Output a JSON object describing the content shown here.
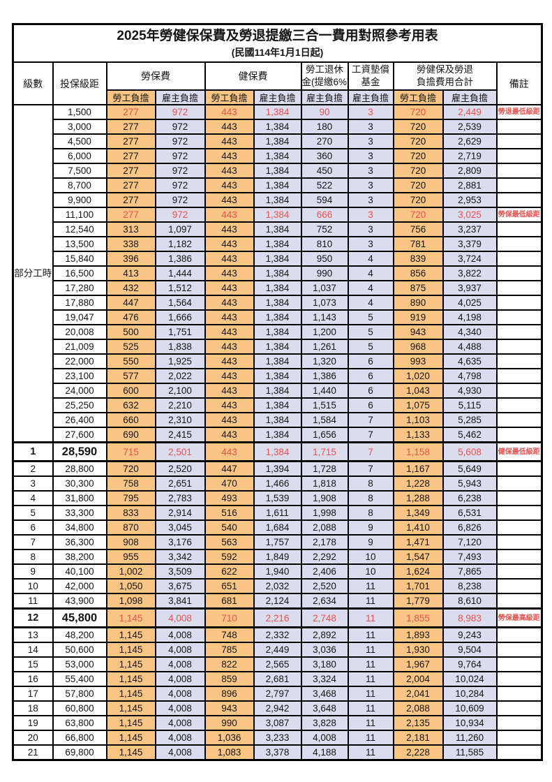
{
  "title": "2025年勞健保保費及勞退提繳三合一費用對照參考用表",
  "subtitle": "(民國114年1月1日起)",
  "colors": {
    "employee_bg": "#F8C585",
    "employer_bg": "#DCDCEF",
    "highlight_red": "#E8524E",
    "border": "#000000"
  },
  "header": {
    "level": "級數",
    "bracket": "投保級距",
    "labor_group": "勞保費",
    "health_group": "健保費",
    "pension_line1": "勞工退休",
    "pension_line2": "金(提繳6%)",
    "arrears_line1": "工資墊償",
    "arrears_line2": "基金",
    "total_line1": "勞健保及勞退",
    "total_line2": "負擔費用合計",
    "employee": "勞工負擔",
    "employer": "雇主負擔",
    "remark": "備註"
  },
  "part_time_label": "部分工時",
  "rows": [
    {
      "level": "",
      "bracket": "1,500",
      "labor_emp": "277",
      "labor_er": "972",
      "health_emp": "443",
      "health_er": "1,384",
      "pension_er": "90",
      "arrears_er": "3",
      "total_emp": "720",
      "total_er": "2,449",
      "remark": "勞退最低級距",
      "red": true,
      "em": false
    },
    {
      "level": "",
      "bracket": "3,000",
      "labor_emp": "277",
      "labor_er": "972",
      "health_emp": "443",
      "health_er": "1,384",
      "pension_er": "180",
      "arrears_er": "3",
      "total_emp": "720",
      "total_er": "2,539",
      "remark": "",
      "red": false,
      "em": false
    },
    {
      "level": "",
      "bracket": "4,500",
      "labor_emp": "277",
      "labor_er": "972",
      "health_emp": "443",
      "health_er": "1,384",
      "pension_er": "270",
      "arrears_er": "3",
      "total_emp": "720",
      "total_er": "2,629",
      "remark": "",
      "red": false,
      "em": false
    },
    {
      "level": "",
      "bracket": "6,000",
      "labor_emp": "277",
      "labor_er": "972",
      "health_emp": "443",
      "health_er": "1,384",
      "pension_er": "360",
      "arrears_er": "3",
      "total_emp": "720",
      "total_er": "2,719",
      "remark": "",
      "red": false,
      "em": false
    },
    {
      "level": "",
      "bracket": "7,500",
      "labor_emp": "277",
      "labor_er": "972",
      "health_emp": "443",
      "health_er": "1,384",
      "pension_er": "450",
      "arrears_er": "3",
      "total_emp": "720",
      "total_er": "2,809",
      "remark": "",
      "red": false,
      "em": false
    },
    {
      "level": "",
      "bracket": "8,700",
      "labor_emp": "277",
      "labor_er": "972",
      "health_emp": "443",
      "health_er": "1,384",
      "pension_er": "522",
      "arrears_er": "3",
      "total_emp": "720",
      "total_er": "2,881",
      "remark": "",
      "red": false,
      "em": false
    },
    {
      "level": "",
      "bracket": "9,900",
      "labor_emp": "277",
      "labor_er": "972",
      "health_emp": "443",
      "health_er": "1,384",
      "pension_er": "594",
      "arrears_er": "3",
      "total_emp": "720",
      "total_er": "2,953",
      "remark": "",
      "red": false,
      "em": false
    },
    {
      "level": "",
      "bracket": "11,100",
      "labor_emp": "277",
      "labor_er": "972",
      "health_emp": "443",
      "health_er": "1,384",
      "pension_er": "666",
      "arrears_er": "3",
      "total_emp": "720",
      "total_er": "3,025",
      "remark": "勞保最低級距",
      "red": true,
      "em": false
    },
    {
      "level": "",
      "bracket": "12,540",
      "labor_emp": "313",
      "labor_er": "1,097",
      "health_emp": "443",
      "health_er": "1,384",
      "pension_er": "752",
      "arrears_er": "3",
      "total_emp": "756",
      "total_er": "3,237",
      "remark": "",
      "red": false,
      "em": false
    },
    {
      "level": "",
      "bracket": "13,500",
      "labor_emp": "338",
      "labor_er": "1,182",
      "health_emp": "443",
      "health_er": "1,384",
      "pension_er": "810",
      "arrears_er": "3",
      "total_emp": "781",
      "total_er": "3,379",
      "remark": "",
      "red": false,
      "em": false
    },
    {
      "level": "",
      "bracket": "15,840",
      "labor_emp": "396",
      "labor_er": "1,386",
      "health_emp": "443",
      "health_er": "1,384",
      "pension_er": "950",
      "arrears_er": "4",
      "total_emp": "839",
      "total_er": "3,724",
      "remark": "",
      "red": false,
      "em": false
    },
    {
      "level": "",
      "bracket": "16,500",
      "labor_emp": "413",
      "labor_er": "1,444",
      "health_emp": "443",
      "health_er": "1,384",
      "pension_er": "990",
      "arrears_er": "4",
      "total_emp": "856",
      "total_er": "3,822",
      "remark": "",
      "red": false,
      "em": false
    },
    {
      "level": "",
      "bracket": "17,280",
      "labor_emp": "432",
      "labor_er": "1,512",
      "health_emp": "443",
      "health_er": "1,384",
      "pension_er": "1,037",
      "arrears_er": "4",
      "total_emp": "875",
      "total_er": "3,937",
      "remark": "",
      "red": false,
      "em": false
    },
    {
      "level": "",
      "bracket": "17,880",
      "labor_emp": "447",
      "labor_er": "1,564",
      "health_emp": "443",
      "health_er": "1,384",
      "pension_er": "1,073",
      "arrears_er": "4",
      "total_emp": "890",
      "total_er": "4,025",
      "remark": "",
      "red": false,
      "em": false
    },
    {
      "level": "",
      "bracket": "19,047",
      "labor_emp": "476",
      "labor_er": "1,666",
      "health_emp": "443",
      "health_er": "1,384",
      "pension_er": "1,143",
      "arrears_er": "5",
      "total_emp": "919",
      "total_er": "4,198",
      "remark": "",
      "red": false,
      "em": false
    },
    {
      "level": "",
      "bracket": "20,008",
      "labor_emp": "500",
      "labor_er": "1,751",
      "health_emp": "443",
      "health_er": "1,384",
      "pension_er": "1,200",
      "arrears_er": "5",
      "total_emp": "943",
      "total_er": "4,340",
      "remark": "",
      "red": false,
      "em": false
    },
    {
      "level": "",
      "bracket": "21,009",
      "labor_emp": "525",
      "labor_er": "1,838",
      "health_emp": "443",
      "health_er": "1,384",
      "pension_er": "1,261",
      "arrears_er": "5",
      "total_emp": "968",
      "total_er": "4,488",
      "remark": "",
      "red": false,
      "em": false
    },
    {
      "level": "",
      "bracket": "22,000",
      "labor_emp": "550",
      "labor_er": "1,925",
      "health_emp": "443",
      "health_er": "1,384",
      "pension_er": "1,320",
      "arrears_er": "6",
      "total_emp": "993",
      "total_er": "4,635",
      "remark": "",
      "red": false,
      "em": false
    },
    {
      "level": "",
      "bracket": "23,100",
      "labor_emp": "577",
      "labor_er": "2,022",
      "health_emp": "443",
      "health_er": "1,384",
      "pension_er": "1,386",
      "arrears_er": "6",
      "total_emp": "1,020",
      "total_er": "4,798",
      "remark": "",
      "red": false,
      "em": false
    },
    {
      "level": "",
      "bracket": "24,000",
      "labor_emp": "600",
      "labor_er": "2,100",
      "health_emp": "443",
      "health_er": "1,384",
      "pension_er": "1,440",
      "arrears_er": "6",
      "total_emp": "1,043",
      "total_er": "4,930",
      "remark": "",
      "red": false,
      "em": false
    },
    {
      "level": "",
      "bracket": "25,250",
      "labor_emp": "632",
      "labor_er": "2,210",
      "health_emp": "443",
      "health_er": "1,384",
      "pension_er": "1,515",
      "arrears_er": "6",
      "total_emp": "1,075",
      "total_er": "5,115",
      "remark": "",
      "red": false,
      "em": false
    },
    {
      "level": "",
      "bracket": "26,400",
      "labor_emp": "660",
      "labor_er": "2,310",
      "health_emp": "443",
      "health_er": "1,384",
      "pension_er": "1,584",
      "arrears_er": "7",
      "total_emp": "1,103",
      "total_er": "5,285",
      "remark": "",
      "red": false,
      "em": false
    },
    {
      "level": "",
      "bracket": "27,600",
      "labor_emp": "690",
      "labor_er": "2,415",
      "health_emp": "443",
      "health_er": "1,384",
      "pension_er": "1,656",
      "arrears_er": "7",
      "total_emp": "1,133",
      "total_er": "5,462",
      "remark": "",
      "red": false,
      "em": false
    },
    {
      "level": "1",
      "bracket": "28,590",
      "labor_emp": "715",
      "labor_er": "2,501",
      "health_emp": "443",
      "health_er": "1,384",
      "pension_er": "1,715",
      "arrears_er": "7",
      "total_emp": "1,158",
      "total_er": "5,608",
      "remark": "健保最低級距",
      "red": true,
      "em": true
    },
    {
      "level": "2",
      "bracket": "28,800",
      "labor_emp": "720",
      "labor_er": "2,520",
      "health_emp": "447",
      "health_er": "1,394",
      "pension_er": "1,728",
      "arrears_er": "7",
      "total_emp": "1,167",
      "total_er": "5,649",
      "remark": "",
      "red": false,
      "em": false
    },
    {
      "level": "3",
      "bracket": "30,300",
      "labor_emp": "758",
      "labor_er": "2,651",
      "health_emp": "470",
      "health_er": "1,466",
      "pension_er": "1,818",
      "arrears_er": "8",
      "total_emp": "1,228",
      "total_er": "5,943",
      "remark": "",
      "red": false,
      "em": false
    },
    {
      "level": "4",
      "bracket": "31,800",
      "labor_emp": "795",
      "labor_er": "2,783",
      "health_emp": "493",
      "health_er": "1,539",
      "pension_er": "1,908",
      "arrears_er": "8",
      "total_emp": "1,288",
      "total_er": "6,238",
      "remark": "",
      "red": false,
      "em": false
    },
    {
      "level": "5",
      "bracket": "33,300",
      "labor_emp": "833",
      "labor_er": "2,914",
      "health_emp": "516",
      "health_er": "1,611",
      "pension_er": "1,998",
      "arrears_er": "8",
      "total_emp": "1,349",
      "total_er": "6,531",
      "remark": "",
      "red": false,
      "em": false
    },
    {
      "level": "6",
      "bracket": "34,800",
      "labor_emp": "870",
      "labor_er": "3,045",
      "health_emp": "540",
      "health_er": "1,684",
      "pension_er": "2,088",
      "arrears_er": "9",
      "total_emp": "1,410",
      "total_er": "6,826",
      "remark": "",
      "red": false,
      "em": false
    },
    {
      "level": "7",
      "bracket": "36,300",
      "labor_emp": "908",
      "labor_er": "3,176",
      "health_emp": "563",
      "health_er": "1,757",
      "pension_er": "2,178",
      "arrears_er": "9",
      "total_emp": "1,471",
      "total_er": "7,120",
      "remark": "",
      "red": false,
      "em": false
    },
    {
      "level": "8",
      "bracket": "38,200",
      "labor_emp": "955",
      "labor_er": "3,342",
      "health_emp": "592",
      "health_er": "1,849",
      "pension_er": "2,292",
      "arrears_er": "10",
      "total_emp": "1,547",
      "total_er": "7,493",
      "remark": "",
      "red": false,
      "em": false
    },
    {
      "level": "9",
      "bracket": "40,100",
      "labor_emp": "1,002",
      "labor_er": "3,509",
      "health_emp": "622",
      "health_er": "1,940",
      "pension_er": "2,406",
      "arrears_er": "10",
      "total_emp": "1,624",
      "total_er": "7,865",
      "remark": "",
      "red": false,
      "em": false
    },
    {
      "level": "10",
      "bracket": "42,000",
      "labor_emp": "1,050",
      "labor_er": "3,675",
      "health_emp": "651",
      "health_er": "2,032",
      "pension_er": "2,520",
      "arrears_er": "11",
      "total_emp": "1,701",
      "total_er": "8,238",
      "remark": "",
      "red": false,
      "em": false
    },
    {
      "level": "11",
      "bracket": "43,900",
      "labor_emp": "1,098",
      "labor_er": "3,841",
      "health_emp": "681",
      "health_er": "2,124",
      "pension_er": "2,634",
      "arrears_er": "11",
      "total_emp": "1,779",
      "total_er": "8,610",
      "remark": "",
      "red": false,
      "em": false
    },
    {
      "level": "12",
      "bracket": "45,800",
      "labor_emp": "1,145",
      "labor_er": "4,008",
      "health_emp": "710",
      "health_er": "2,216",
      "pension_er": "2,748",
      "arrears_er": "11",
      "total_emp": "1,855",
      "total_er": "8,983",
      "remark": "勞保最高級距",
      "red": true,
      "em": true
    },
    {
      "level": "13",
      "bracket": "48,200",
      "labor_emp": "1,145",
      "labor_er": "4,008",
      "health_emp": "748",
      "health_er": "2,332",
      "pension_er": "2,892",
      "arrears_er": "11",
      "total_emp": "1,893",
      "total_er": "9,243",
      "remark": "",
      "red": false,
      "em": false
    },
    {
      "level": "14",
      "bracket": "50,600",
      "labor_emp": "1,145",
      "labor_er": "4,008",
      "health_emp": "785",
      "health_er": "2,449",
      "pension_er": "3,036",
      "arrears_er": "11",
      "total_emp": "1,930",
      "total_er": "9,504",
      "remark": "",
      "red": false,
      "em": false
    },
    {
      "level": "15",
      "bracket": "53,000",
      "labor_emp": "1,145",
      "labor_er": "4,008",
      "health_emp": "822",
      "health_er": "2,565",
      "pension_er": "3,180",
      "arrears_er": "11",
      "total_emp": "1,967",
      "total_er": "9,764",
      "remark": "",
      "red": false,
      "em": false
    },
    {
      "level": "16",
      "bracket": "55,400",
      "labor_emp": "1,145",
      "labor_er": "4,008",
      "health_emp": "859",
      "health_er": "2,681",
      "pension_er": "3,324",
      "arrears_er": "11",
      "total_emp": "2,004",
      "total_er": "10,024",
      "remark": "",
      "red": false,
      "em": false
    },
    {
      "level": "17",
      "bracket": "57,800",
      "labor_emp": "1,145",
      "labor_er": "4,008",
      "health_emp": "896",
      "health_er": "2,797",
      "pension_er": "3,468",
      "arrears_er": "11",
      "total_emp": "2,041",
      "total_er": "10,284",
      "remark": "",
      "red": false,
      "em": false
    },
    {
      "level": "18",
      "bracket": "60,800",
      "labor_emp": "1,145",
      "labor_er": "4,008",
      "health_emp": "943",
      "health_er": "2,942",
      "pension_er": "3,648",
      "arrears_er": "11",
      "total_emp": "2,088",
      "total_er": "10,609",
      "remark": "",
      "red": false,
      "em": false
    },
    {
      "level": "19",
      "bracket": "63,800",
      "labor_emp": "1,145",
      "labor_er": "4,008",
      "health_emp": "990",
      "health_er": "3,087",
      "pension_er": "3,828",
      "arrears_er": "11",
      "total_emp": "2,135",
      "total_er": "10,934",
      "remark": "",
      "red": false,
      "em": false
    },
    {
      "level": "20",
      "bracket": "66,800",
      "labor_emp": "1,145",
      "labor_er": "4,008",
      "health_emp": "1,036",
      "health_er": "3,233",
      "pension_er": "4,008",
      "arrears_er": "11",
      "total_emp": "2,181",
      "total_er": "11,260",
      "remark": "",
      "red": false,
      "em": false
    },
    {
      "level": "21",
      "bracket": "69,800",
      "labor_emp": "1,145",
      "labor_er": "4,008",
      "health_emp": "1,083",
      "health_er": "3,378",
      "pension_er": "4,188",
      "arrears_er": "11",
      "total_emp": "2,228",
      "total_er": "11,585",
      "remark": "",
      "red": false,
      "em": false
    }
  ]
}
